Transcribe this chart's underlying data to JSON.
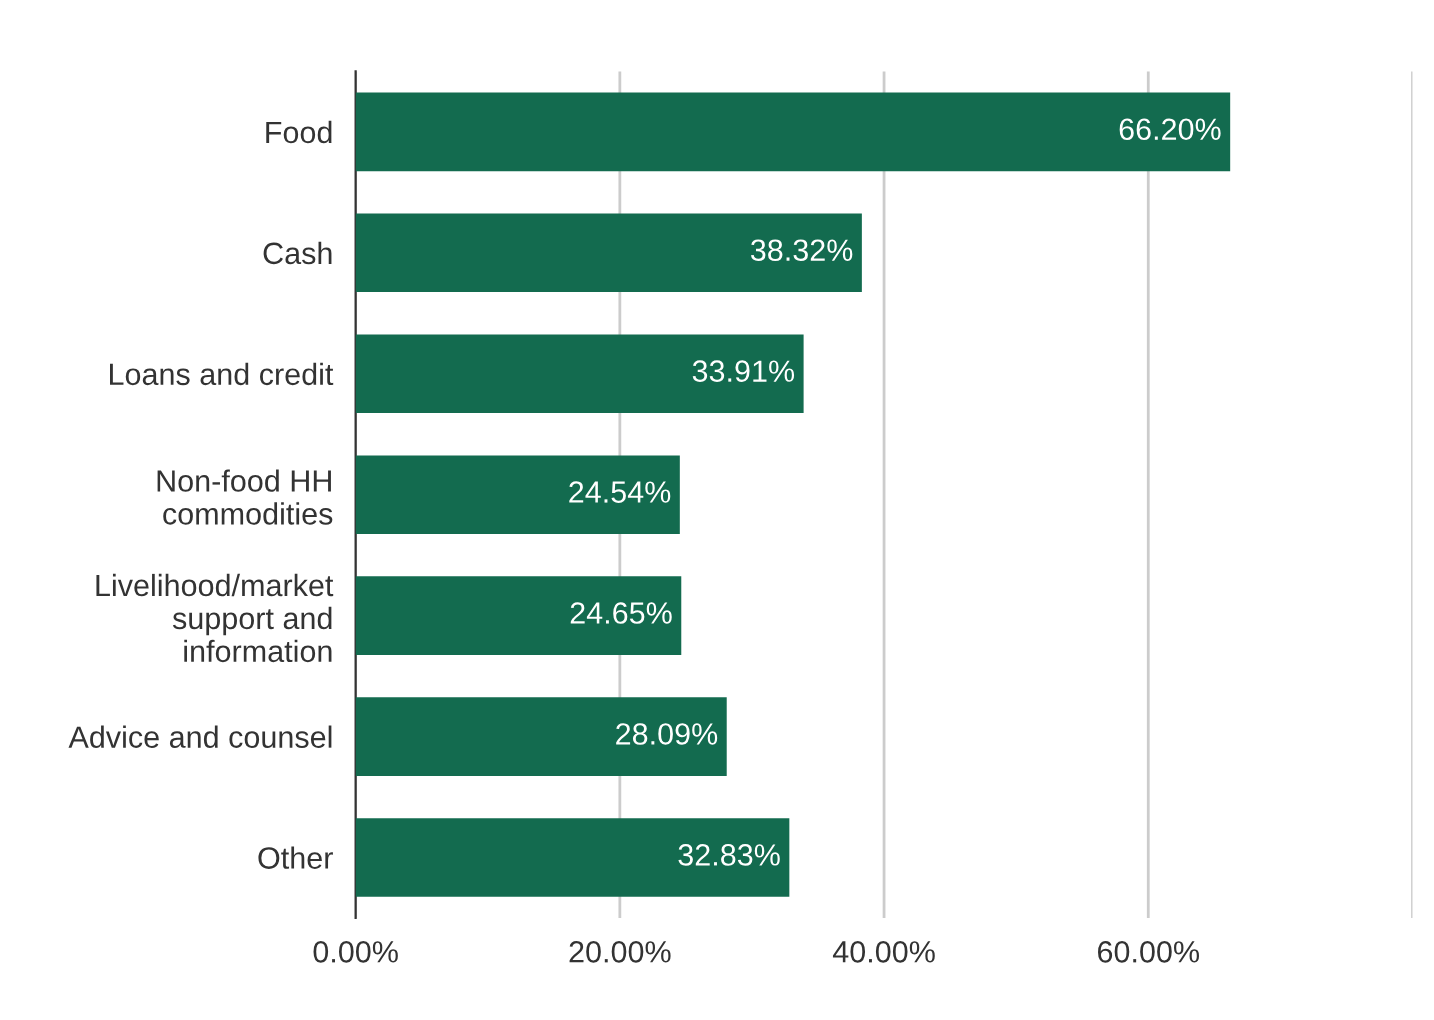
{
  "chart_data": {
    "type": "bar",
    "orientation": "horizontal",
    "categories": [
      "Food",
      "Cash",
      "Loans and credit",
      "Non-food HH\ncommodities",
      "Livelihood/market\nsupport and\ninformation",
      "Advice and counsel",
      "Other"
    ],
    "values": [
      66.2,
      38.32,
      33.91,
      24.54,
      24.65,
      28.09,
      32.83
    ],
    "value_labels": [
      "66.20%",
      "38.32%",
      "33.91%",
      "24.54%",
      "24.65%",
      "28.09%",
      "32.83%"
    ],
    "color": "#136b4f",
    "xlim": [
      0,
      80
    ],
    "xticks": [
      {
        "value": 0,
        "label": "0.00%"
      },
      {
        "value": 20,
        "label": "20.00%"
      },
      {
        "value": 40,
        "label": "40.00%"
      },
      {
        "value": 60,
        "label": "60.00%"
      },
      {
        "value": 80,
        "label": null
      }
    ],
    "grid": "x",
    "legend": false
  }
}
